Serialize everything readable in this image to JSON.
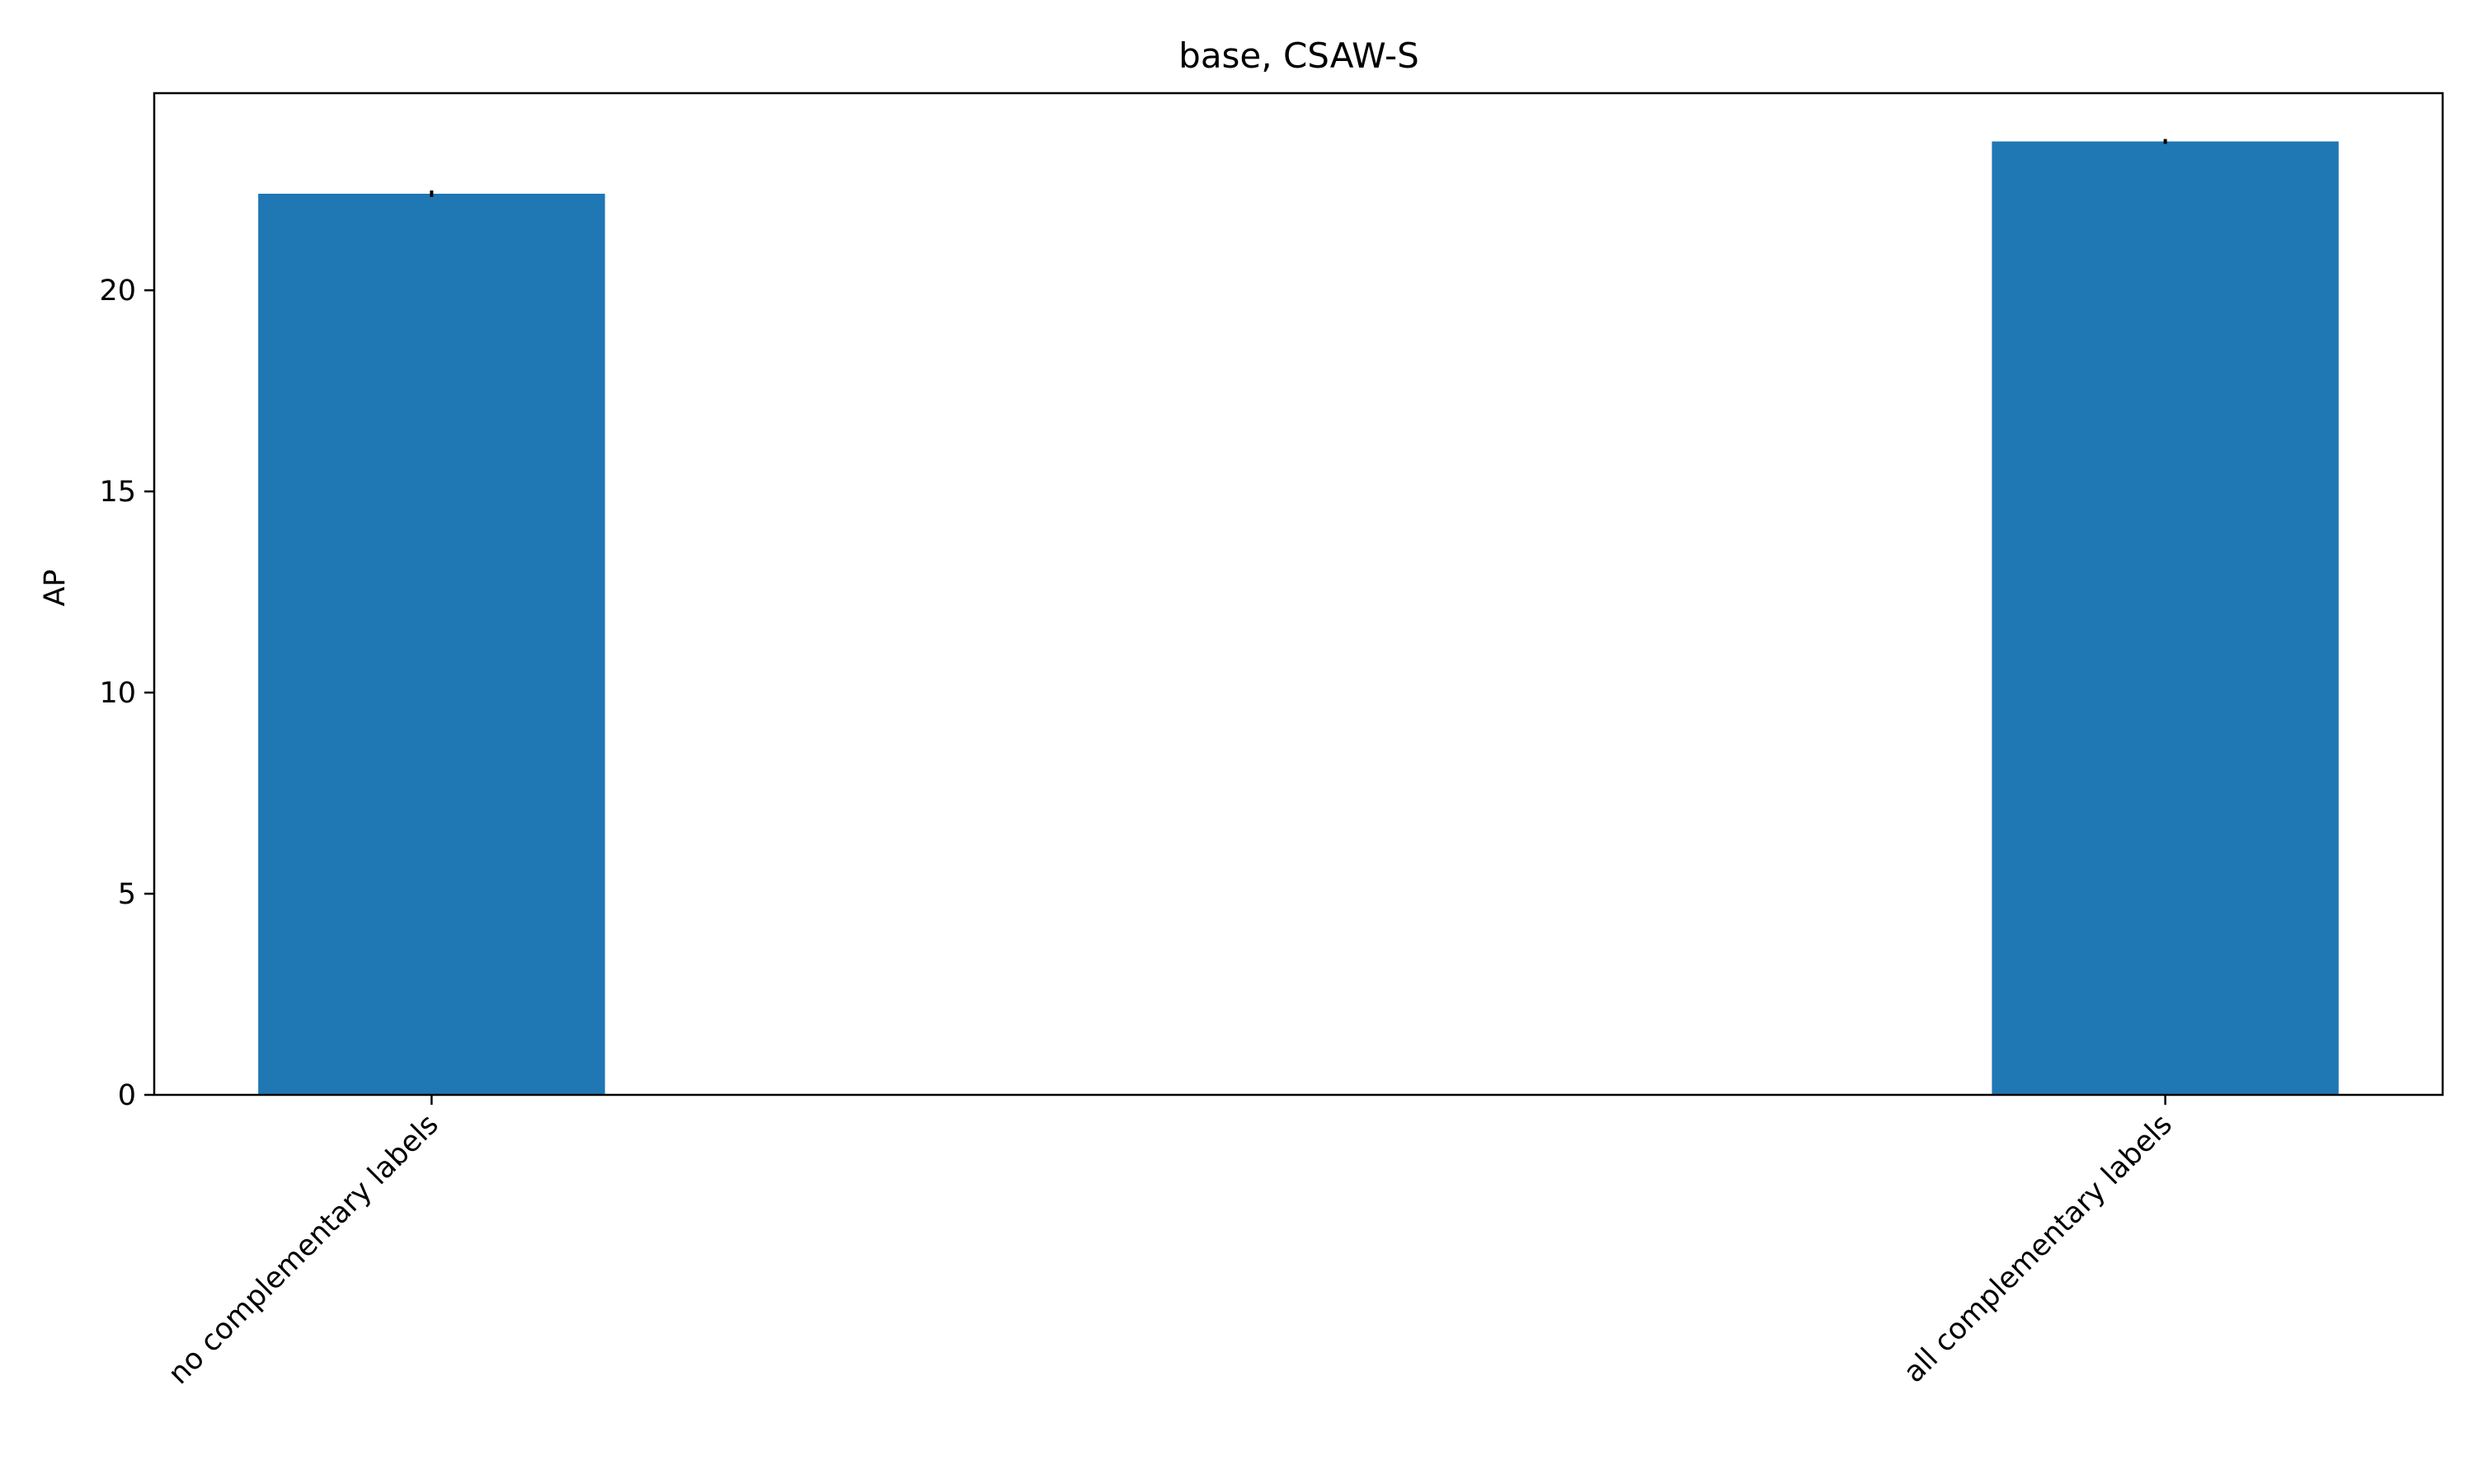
{
  "chart_data": {
    "type": "bar",
    "title": "base, CSAW-S",
    "xlabel": "",
    "ylabel": "AP",
    "categories": [
      "no complementary labels",
      "all complementary labels"
    ],
    "values": [
      22.4,
      23.7
    ],
    "errors": [
      0.08,
      0.06
    ],
    "ylim": [
      0,
      24.9
    ],
    "yticks": [
      0,
      5,
      10,
      15,
      20
    ],
    "grid": false,
    "legend": "none",
    "bar_color": "#1f77b4",
    "error_color": "#000000"
  }
}
